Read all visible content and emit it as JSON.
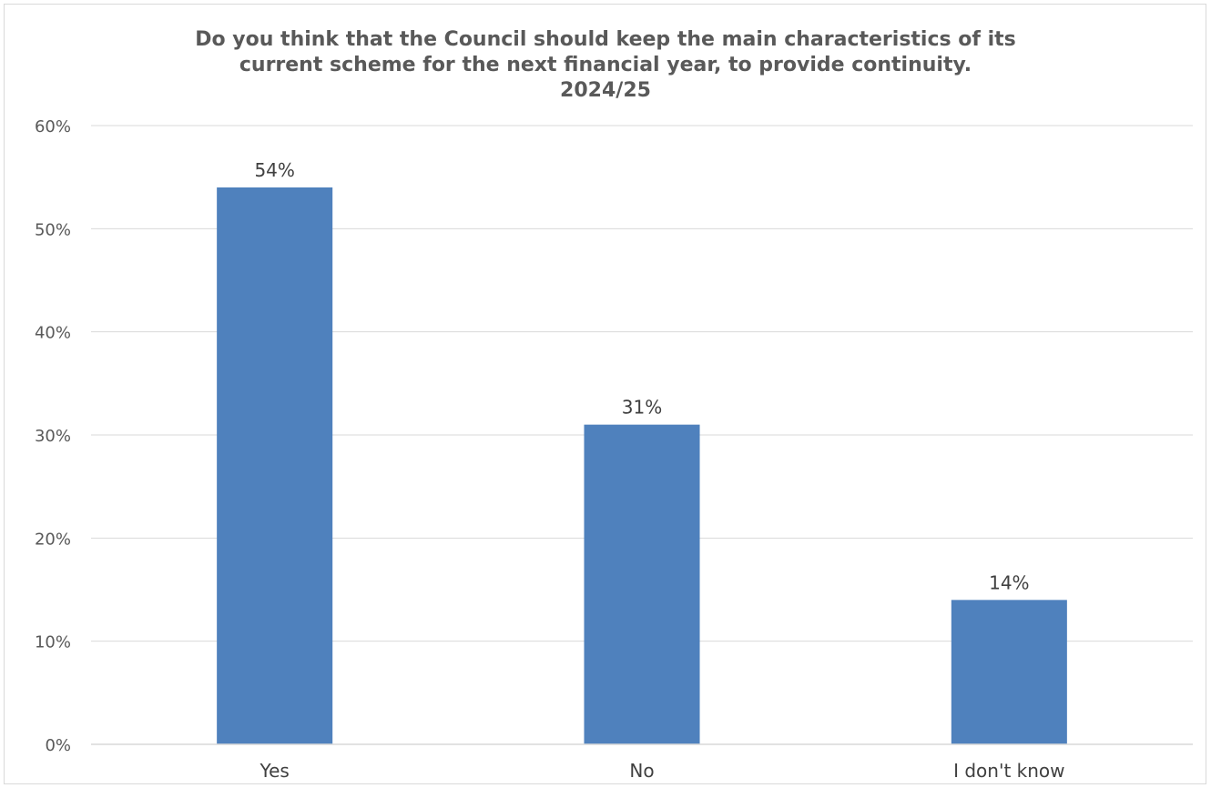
{
  "chart_data": {
    "type": "bar",
    "title_lines": [
      "Do you think that the Council should keep the main characteristics of its",
      "current scheme for the next financial year, to provide continuity.",
      "2024/25"
    ],
    "categories": [
      "Yes",
      "No",
      "I don't know"
    ],
    "values": [
      54,
      31,
      14
    ],
    "data_labels": [
      "54%",
      "31%",
      "14%"
    ],
    "yticks": [
      0,
      10,
      20,
      30,
      40,
      50,
      60
    ],
    "ytick_labels": [
      "0%",
      "10%",
      "20%",
      "30%",
      "40%",
      "50%",
      "60%"
    ],
    "ylim": [
      0,
      60
    ],
    "grid": true,
    "legend": "none",
    "bar_color": "#4f81bd",
    "grid_color": "#d9d9d9"
  }
}
